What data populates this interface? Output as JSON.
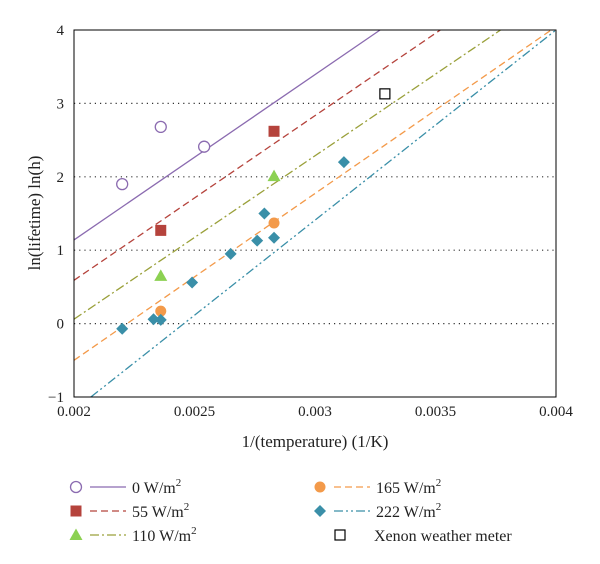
{
  "chart_data": {
    "type": "scatter",
    "xlabel": "1/(temperature) (1/K)",
    "ylabel": "ln(lifetime) ln(h)",
    "xlim": [
      0.002,
      0.004
    ],
    "ylim": [
      -1,
      4
    ],
    "x_ticks": [
      "0.002",
      "0.0025",
      "0.003",
      "0.0035",
      "0.004"
    ],
    "y_ticks": [
      "−1",
      "0",
      "1",
      "2",
      "3",
      "4"
    ],
    "grid": "horizontal dotted",
    "legend_position": "bottom",
    "series": [
      {
        "name": "0 W/m",
        "name_sup": "2",
        "marker": "open-circle",
        "color": "#8b6bb0",
        "line_style": "solid",
        "points": [
          [
            0.0022,
            1.9
          ],
          [
            0.00236,
            2.68
          ],
          [
            0.00254,
            2.41
          ]
        ],
        "fit": [
          [
            0.002,
            1.14
          ],
          [
            0.00327,
            4.0
          ]
        ]
      },
      {
        "name": "55 W/m",
        "name_sup": "2",
        "marker": "square",
        "color": "#b5433c",
        "line_style": "dashed",
        "points": [
          [
            0.00236,
            1.27
          ],
          [
            0.00283,
            2.62
          ]
        ],
        "fit": [
          [
            0.002,
            0.59
          ],
          [
            0.00352,
            4.0
          ]
        ]
      },
      {
        "name": "110 W/m",
        "name_sup": "2",
        "marker": "triangle",
        "color": "#8cd152",
        "line_color": "#9aa03a",
        "line_style": "dashdot",
        "points": [
          [
            0.00236,
            0.65
          ],
          [
            0.00283,
            2.01
          ]
        ],
        "fit": [
          [
            0.002,
            0.06
          ],
          [
            0.00377,
            4.0
          ]
        ]
      },
      {
        "name": "165 W/m",
        "name_sup": "2",
        "marker": "circle",
        "color": "#f39a4a",
        "line_style": "dashed",
        "points": [
          [
            0.00236,
            0.17
          ],
          [
            0.00283,
            1.37
          ]
        ],
        "fit": [
          [
            0.002,
            -0.5
          ],
          [
            0.00398,
            4.0
          ]
        ]
      },
      {
        "name": "222 W/m",
        "name_sup": "2",
        "marker": "diamond",
        "color": "#3a8fa8",
        "line_style": "dashdotdot",
        "points": [
          [
            0.0022,
            -0.07
          ],
          [
            0.00233,
            0.06
          ],
          [
            0.00236,
            0.05
          ],
          [
            0.00249,
            0.56
          ],
          [
            0.00265,
            0.95
          ],
          [
            0.00276,
            1.13
          ],
          [
            0.00279,
            1.5
          ],
          [
            0.00283,
            1.17
          ],
          [
            0.00312,
            2.2
          ]
        ],
        "fit": [
          [
            0.00207,
            -1.0
          ],
          [
            0.004,
            4.0
          ]
        ]
      },
      {
        "name": "Xenon weather meter",
        "name_sup": "",
        "marker": "open-square",
        "color": "#000000",
        "line_style": "none",
        "points": [
          [
            0.00329,
            3.13
          ]
        ],
        "fit": []
      }
    ]
  }
}
